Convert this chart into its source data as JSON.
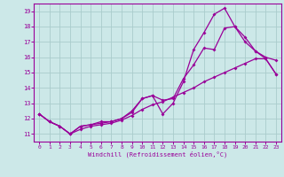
{
  "xlabel": "Windchill (Refroidissement éolien,°C)",
  "bg_color": "#cce8e8",
  "line_color": "#990099",
  "grid_color": "#aacccc",
  "xlim": [
    -0.5,
    23.5
  ],
  "ylim": [
    10.5,
    19.5
  ],
  "xticks": [
    0,
    1,
    2,
    3,
    4,
    5,
    6,
    7,
    8,
    9,
    10,
    11,
    12,
    13,
    14,
    15,
    16,
    17,
    18,
    19,
    20,
    21,
    22,
    23
  ],
  "yticks": [
    11,
    12,
    13,
    14,
    15,
    16,
    17,
    18,
    19
  ],
  "line1_x": [
    0,
    1,
    2,
    3,
    4,
    5,
    6,
    7,
    8,
    9,
    10,
    11,
    12,
    13,
    14,
    15,
    16,
    17,
    18,
    19,
    20,
    21,
    22,
    23
  ],
  "line1_y": [
    12.3,
    11.8,
    11.5,
    11.0,
    11.5,
    11.6,
    11.7,
    11.8,
    12.0,
    12.4,
    13.3,
    13.5,
    12.3,
    13.0,
    14.4,
    16.5,
    17.6,
    18.8,
    19.2,
    18.0,
    17.0,
    16.4,
    15.9,
    14.9
  ],
  "line2_x": [
    0,
    1,
    2,
    3,
    4,
    5,
    6,
    7,
    8,
    9,
    10,
    11,
    12,
    13,
    14,
    15,
    16,
    17,
    18,
    19,
    20,
    21,
    22,
    23
  ],
  "line2_y": [
    12.3,
    11.8,
    11.5,
    11.0,
    11.5,
    11.6,
    11.8,
    11.8,
    12.0,
    12.5,
    13.3,
    13.5,
    13.2,
    13.3,
    14.6,
    15.5,
    16.6,
    16.5,
    17.9,
    18.0,
    17.3,
    16.4,
    16.0,
    15.8
  ],
  "line3_x": [
    0,
    1,
    2,
    3,
    4,
    5,
    6,
    7,
    8,
    9,
    10,
    11,
    12,
    13,
    14,
    15,
    16,
    17,
    18,
    19,
    20,
    21,
    22,
    23
  ],
  "line3_y": [
    12.3,
    11.8,
    11.5,
    11.0,
    11.3,
    11.5,
    11.6,
    11.7,
    11.9,
    12.2,
    12.6,
    12.9,
    13.1,
    13.4,
    13.7,
    14.0,
    14.4,
    14.7,
    15.0,
    15.3,
    15.6,
    15.9,
    15.9,
    14.9
  ]
}
